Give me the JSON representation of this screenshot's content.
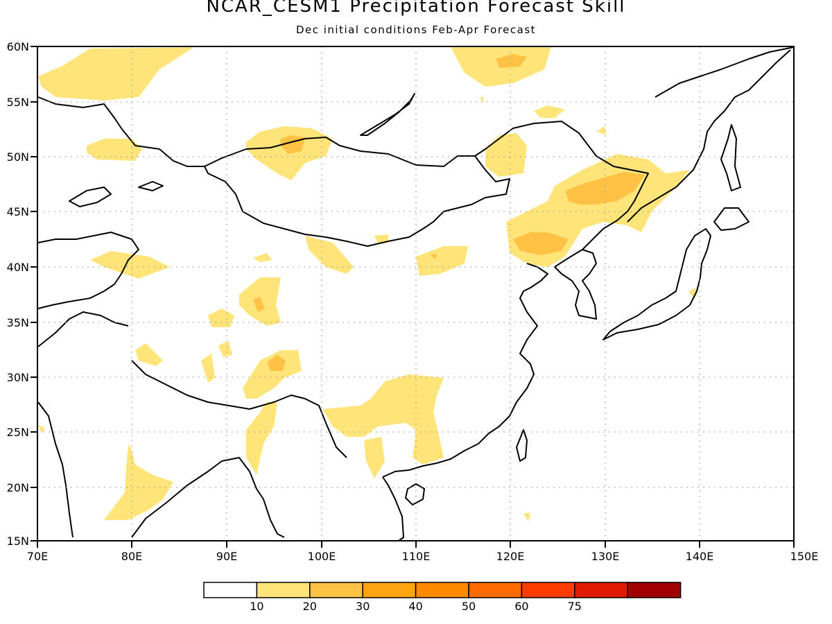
{
  "title": "NCAR_CESM1 Precipitation Forecast Skill",
  "subtitle": "Dec initial conditions  Feb-Apr Forecast",
  "map": {
    "lon_range": [
      70,
      150
    ],
    "lat_range": [
      15,
      60
    ],
    "lon_ticks": [
      "70E",
      "80E",
      "90E",
      "100E",
      "110E",
      "120E",
      "130E",
      "140E",
      "150E"
    ],
    "lat_ticks": [
      "15N",
      "20N",
      "25N",
      "30N",
      "35N",
      "40N",
      "45N",
      "50N",
      "55N",
      "60N"
    ],
    "gridlines": "dotted"
  },
  "colorbar": {
    "colors": [
      "#ffffff",
      "#ffe47a",
      "#ffc245",
      "#ffa512",
      "#ff8a00",
      "#ff6a00",
      "#ff3c00",
      "#e01a00",
      "#a00000"
    ],
    "labels": [
      "10",
      "20",
      "30",
      "40",
      "50",
      "60",
      "75"
    ]
  },
  "skill_regions": [
    {
      "level": 1,
      "note": "western Siberia"
    },
    {
      "level": 1,
      "note": "north Siberia 60N 115E"
    },
    {
      "level": 2,
      "note": "north Siberia core"
    },
    {
      "level": 1,
      "note": "Mongolia north border 95E"
    },
    {
      "level": 2,
      "note": "Mongolia core"
    },
    {
      "level": 1,
      "note": "Northeast China / Manchuria"
    },
    {
      "level": 2,
      "note": "Manchuria core"
    },
    {
      "level": 1,
      "note": "Tibet / Sichuan"
    },
    {
      "level": 2,
      "note": "Tibet core"
    },
    {
      "level": 1,
      "note": "South China"
    },
    {
      "level": 1,
      "note": "India east"
    }
  ]
}
